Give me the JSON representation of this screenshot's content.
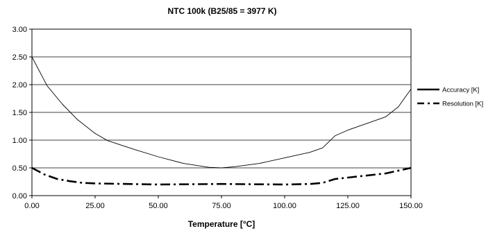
{
  "chart_data": {
    "type": "line",
    "title": "NTC 100k (B25/85 = 3977 K)",
    "xlabel": "Temperature [°C]",
    "ylabel": "",
    "xlim": [
      0,
      150
    ],
    "ylim": [
      0,
      3
    ],
    "x_ticks": [
      "0.00",
      "25.00",
      "50.00",
      "75.00",
      "100.00",
      "125.00",
      "150.00"
    ],
    "y_ticks": [
      "0.00",
      "0.50",
      "1.00",
      "1.50",
      "2.00",
      "2.50",
      "3.00"
    ],
    "grid": "horizontal",
    "legend_position": "right",
    "series": [
      {
        "name": "Accuracy [K]",
        "style": "solid",
        "color": "#000000",
        "x": [
          0,
          6,
          12,
          18,
          25,
          30,
          40,
          50,
          60,
          70,
          75,
          80,
          90,
          100,
          110,
          115,
          120,
          125,
          130,
          140,
          145,
          150
        ],
        "y": [
          2.5,
          1.98,
          1.65,
          1.37,
          1.12,
          0.99,
          0.84,
          0.7,
          0.58,
          0.51,
          0.5,
          0.52,
          0.58,
          0.68,
          0.78,
          0.86,
          1.08,
          1.18,
          1.26,
          1.42,
          1.6,
          1.92
        ]
      },
      {
        "name": "Resolution [K]",
        "style": "dash-dot",
        "color": "#000000",
        "x": [
          0,
          5,
          10,
          15,
          20,
          25,
          50,
          75,
          100,
          110,
          115,
          120,
          130,
          140,
          150
        ],
        "y": [
          0.5,
          0.38,
          0.3,
          0.26,
          0.23,
          0.22,
          0.2,
          0.21,
          0.2,
          0.21,
          0.23,
          0.3,
          0.35,
          0.4,
          0.5
        ]
      }
    ]
  }
}
